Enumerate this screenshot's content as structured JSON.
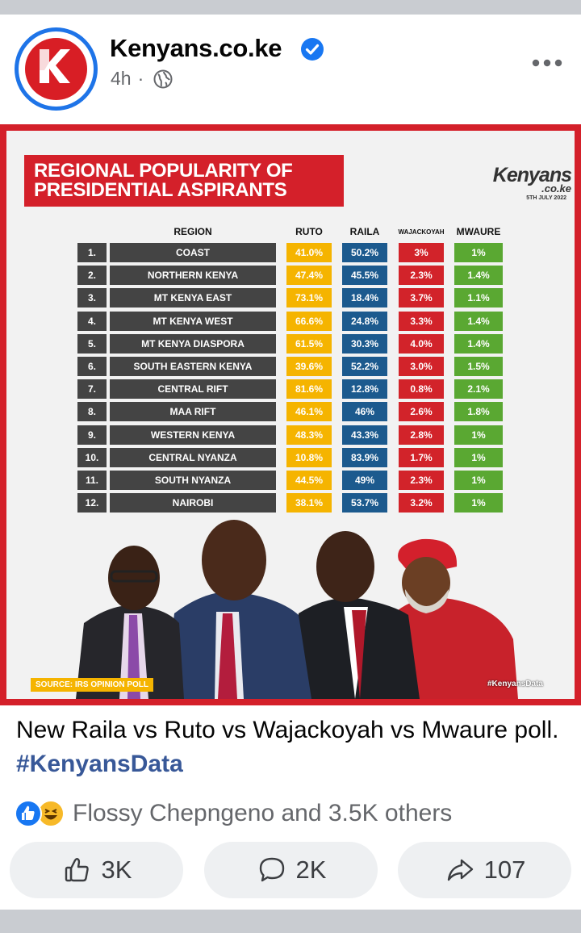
{
  "post": {
    "page_name": "Kenyans.co.ke",
    "time": "4h",
    "separator": "·",
    "caption": "New Raila vs Ruto vs Wajackoyah vs Mwaure poll.",
    "hashtag": "#KenyansData",
    "reactions_text": "Flossy Chepngeno and 3.5K others",
    "reaction_icons": [
      "like-icon",
      "haha-icon"
    ],
    "actions": {
      "like_count": "3K",
      "comment_count": "2K",
      "share_count": "107"
    }
  },
  "poster": {
    "title_line1": "REGIONAL POPULARITY OF",
    "title_line2": "PRESIDENTIAL ASPIRANTS",
    "brand_main": "Kenyans",
    "brand_sub": ".co.ke",
    "brand_date": "5TH JULY 2022",
    "headers": {
      "region": "REGION",
      "ruto": "RUTO",
      "raila": "RAILA",
      "wajackoyah": "WAJACKOYAH",
      "mwaure": "MWAURE"
    },
    "rows": [
      {
        "num": "1.",
        "region": "COAST",
        "ruto": "41.0%",
        "raila": "50.2%",
        "waj": "3%",
        "mwaure": "1%"
      },
      {
        "num": "2.",
        "region": "NORTHERN KENYA",
        "ruto": "47.4%",
        "raila": "45.5%",
        "waj": "2.3%",
        "mwaure": "1.4%"
      },
      {
        "num": "3.",
        "region": "MT KENYA EAST",
        "ruto": "73.1%",
        "raila": "18.4%",
        "waj": "3.7%",
        "mwaure": "1.1%"
      },
      {
        "num": "4.",
        "region": "MT KENYA WEST",
        "ruto": "66.6%",
        "raila": "24.8%",
        "waj": "3.3%",
        "mwaure": "1.4%"
      },
      {
        "num": "5.",
        "region": "MT KENYA DIASPORA",
        "ruto": "61.5%",
        "raila": "30.3%",
        "waj": "4.0%",
        "mwaure": "1.4%"
      },
      {
        "num": "6.",
        "region": "SOUTH EASTERN KENYA",
        "ruto": "39.6%",
        "raila": "52.2%",
        "waj": "3.0%",
        "mwaure": "1.5%"
      },
      {
        "num": "7.",
        "region": "CENTRAL RIFT",
        "ruto": "81.6%",
        "raila": "12.8%",
        "waj": "0.8%",
        "mwaure": "2.1%"
      },
      {
        "num": "8.",
        "region": "MAA RIFT",
        "ruto": "46.1%",
        "raila": "46%",
        "waj": "2.6%",
        "mwaure": "1.8%"
      },
      {
        "num": "9.",
        "region": "WESTERN KENYA",
        "ruto": "48.3%",
        "raila": "43.3%",
        "waj": "2.8%",
        "mwaure": "1%"
      },
      {
        "num": "10.",
        "region": "CENTRAL NYANZA",
        "ruto": "10.8%",
        "raila": "83.9%",
        "waj": "1.7%",
        "mwaure": "1%"
      },
      {
        "num": "11.",
        "region": "SOUTH NYANZA",
        "ruto": "44.5%",
        "raila": "49%",
        "waj": "2.3%",
        "mwaure": "1%"
      },
      {
        "num": "12.",
        "region": "NAIROBI",
        "ruto": "38.1%",
        "raila": "53.7%",
        "waj": "3.2%",
        "mwaure": "1%"
      }
    ],
    "source": "SOURCE: IRS OPINION POLL",
    "hashtag": "#KenyansData",
    "colors": {
      "ruto": "#f5b400",
      "raila": "#1c5a8e",
      "wajackoyah": "#d2232a",
      "mwaure": "#5aa832",
      "region": "#444444",
      "brand_red": "#d4202a"
    }
  },
  "icons": {
    "verified": "verified-badge-icon",
    "audience": "globe-icon",
    "more": "more-options-icon",
    "like": "thumbs-up-icon",
    "comment": "comment-icon",
    "share": "share-icon"
  }
}
